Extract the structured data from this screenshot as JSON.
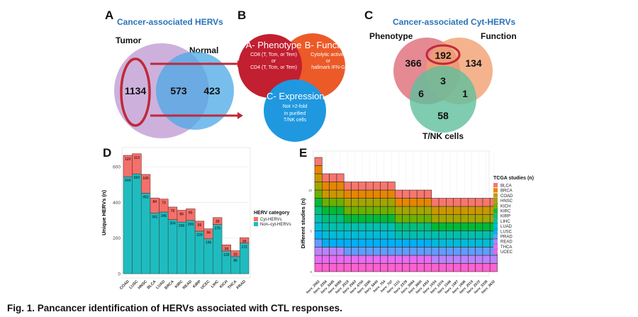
{
  "panel_a": {
    "letter": "A",
    "title": "Cancer-associated HERVs",
    "set_labels": {
      "tumor": "Tumor",
      "normal": "Normal"
    },
    "counts": {
      "tumor_only": "1134",
      "both": "573",
      "normal_only": "423"
    },
    "colors": {
      "tumor": "#c8a8d8",
      "normal": "#4aa8e6",
      "highlight": "#c0283a"
    }
  },
  "panel_b": {
    "letter": "B",
    "circles": [
      {
        "title": "A- Phenotype",
        "lines": [
          "CD8 (T, Tcm, or Tem)",
          "or",
          "CD4 (T, Tcm, or Tem)"
        ],
        "color": "#c21f30"
      },
      {
        "title": "B- Function",
        "lines": [
          "Cytolytic activity",
          "or",
          "hallmark IFN-G"
        ],
        "color": "#ec5a28"
      },
      {
        "title": "C- Expression",
        "lines": [
          "Not >2-fold",
          "in purified",
          "T/NK cells"
        ],
        "color": "#1f98e0"
      }
    ]
  },
  "panel_c": {
    "letter": "C",
    "title": "Cancer-associated Cyt-HERVs",
    "set_labels": {
      "phenotype": "Phenotype",
      "function": "Function",
      "tnk": "T/NK cells"
    },
    "counts": {
      "phenotype_only": "366",
      "phenotype_function": "192",
      "function_only": "134",
      "all_three": "3",
      "phenotype_tnk": "6",
      "function_tnk": "1",
      "tnk_only": "58"
    },
    "colors": {
      "phenotype": "#e07480",
      "function": "#f1a070",
      "tnk": "#5fbf9c",
      "highlight": "#c0283a"
    }
  },
  "chart_data": [
    {
      "panel": "D",
      "type": "bar",
      "stacked": true,
      "title": "",
      "xlabel": "",
      "ylabel": "Unique HERVs (n)",
      "ylim": [
        0,
        700
      ],
      "yticks": [
        0,
        200,
        400,
        600
      ],
      "grid": true,
      "categories": [
        "COAD",
        "LUSC",
        "HNSC",
        "BLCA",
        "LUAD",
        "BRCA",
        "KIRC",
        "READ",
        "KIRP",
        "UCEC",
        "LIHC",
        "KICH",
        "THCA",
        "PRAD"
      ],
      "series": [
        {
          "name": "Non–cyt-HERVs",
          "color": "#1fbcbf",
          "values": [
            544,
            560,
            452,
            341,
            346,
            304,
            290,
            299,
            239,
            196,
            276,
            128,
            96,
            172
          ]
        },
        {
          "name": "Cyt-HERVs",
          "color": "#f4706a",
          "values": [
            120,
            113,
            105,
            84,
            73,
            70,
            66,
            65,
            56,
            56,
            39,
            34,
            33,
            30
          ]
        }
      ],
      "legend": {
        "title": "HERV category",
        "entries": [
          "Cyt-HERVs",
          "Non–cyt-HERVs"
        ],
        "placement": "right"
      }
    },
    {
      "panel": "E",
      "type": "heatmap",
      "title": "",
      "xlabel": "",
      "ylabel": "Different studies (n)",
      "ylim": [
        0,
        14
      ],
      "yticks": [
        0,
        5,
        10
      ],
      "categories": [
        "herv_2062",
        "herv_2256",
        "herv_3445",
        "herv_6089",
        "herv_2518",
        "herv_2563",
        "herv_4750",
        "herv_3290",
        "herv_5640",
        "herv_754",
        "herv_797",
        "herv_1111",
        "herv_2378",
        "herv_3064",
        "herv_3600",
        "herv_4353",
        "herv_1034",
        "herv_1074",
        "herv_1546",
        "herv_1087",
        "herv_1696",
        "herv_2019",
        "herv_2572",
        "herv_3338",
        "herv_3632"
      ],
      "values": [
        14,
        12,
        12,
        12,
        11,
        11,
        11,
        11,
        11,
        11,
        11,
        10,
        10,
        10,
        10,
        10,
        9,
        9,
        9,
        9,
        9,
        9,
        9,
        9,
        9
      ],
      "legend": {
        "title": "TCGA studies (n)",
        "placement": "right",
        "entries": [
          {
            "name": "BLCA",
            "color": "#f8766d"
          },
          {
            "name": "BRCA",
            "color": "#e58700"
          },
          {
            "name": "COAD",
            "color": "#c99800"
          },
          {
            "name": "HNSC",
            "color": "#a3a500"
          },
          {
            "name": "KICH",
            "color": "#6bb100"
          },
          {
            "name": "KIRC",
            "color": "#00ba38"
          },
          {
            "name": "KIRP",
            "color": "#00bf7d"
          },
          {
            "name": "LIHC",
            "color": "#00c0af"
          },
          {
            "name": "LUAD",
            "color": "#00bcd8"
          },
          {
            "name": "LUSC",
            "color": "#00b0f6"
          },
          {
            "name": "PRAD",
            "color": "#619cff"
          },
          {
            "name": "READ",
            "color": "#b983ff"
          },
          {
            "name": "THCA",
            "color": "#e76bf3"
          },
          {
            "name": "UCEC",
            "color": "#fd61d1"
          }
        ]
      }
    }
  ],
  "caption": "Fig. 1. Pancancer identification of HERVs associated with CTL responses."
}
